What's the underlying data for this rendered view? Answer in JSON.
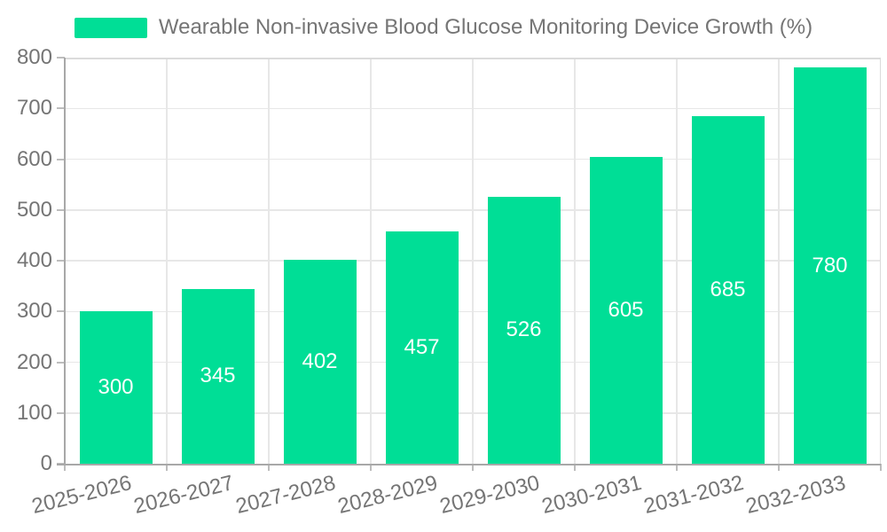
{
  "chart_data": {
    "type": "bar",
    "title": "Wearable Non-invasive Blood Glucose Monitoring Device Growth (%)",
    "categories": [
      "2025-2026",
      "2026-2027",
      "2027-2028",
      "2028-2029",
      "2029-2030",
      "2030-2031",
      "2031-2032",
      "2032-2033"
    ],
    "values": [
      300,
      345,
      402,
      457,
      526,
      605,
      685,
      780
    ],
    "xlabel": "",
    "ylabel": "",
    "ylim": [
      0,
      800
    ],
    "ytick_step": 100,
    "grid": true,
    "legend_position": "top-center",
    "x_label_rotation_deg": -14,
    "bar_label_position": "inside-center",
    "colors": {
      "bar": "#00de96",
      "bar_label": "#ffffff",
      "text": "#757575",
      "axis_line": "#a8a8a8",
      "tick": "#bdbdbd",
      "grid_line": "#e7e7e7",
      "plot_border": "#dbdbdb",
      "background": "#ffffff"
    }
  }
}
